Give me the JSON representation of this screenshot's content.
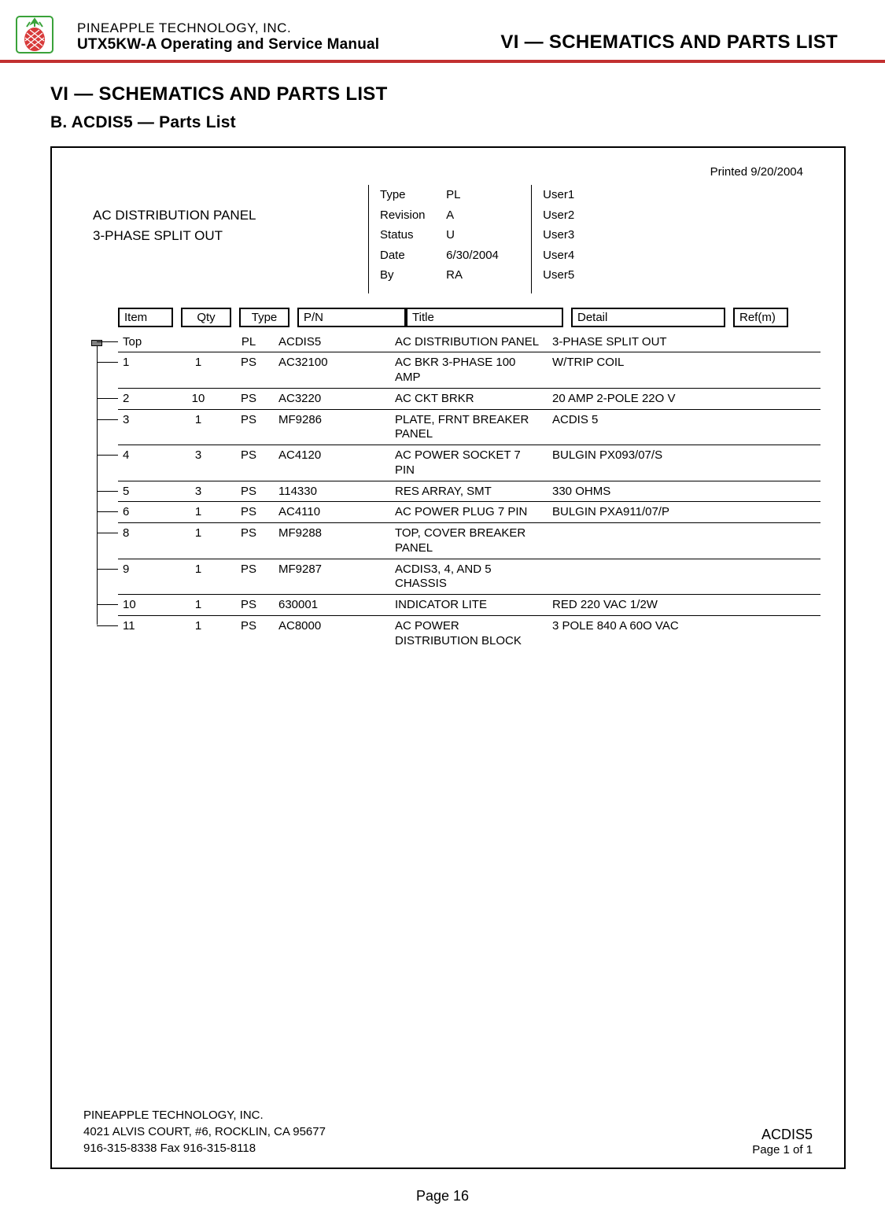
{
  "header": {
    "company": "PINEAPPLE TECHNOLOGY, INC.",
    "manual": "UTX5KW-A Operating and Service Manual",
    "right": "VI — SCHEMATICS AND PARTS LIST"
  },
  "titles": {
    "section": "VI — SCHEMATICS AND PARTS LIST",
    "subsection": "B. ACDIS5 — Parts List"
  },
  "printed": "Printed 9/20/2004",
  "meta": {
    "left": {
      "line1": "AC DISTRIBUTION PANEL",
      "line2": "3-PHASE SPLIT OUT"
    },
    "center_labels": [
      "Type",
      "Revision",
      "Status",
      "Date",
      "By"
    ],
    "center_values": [
      "PL",
      "A",
      "U",
      "6/30/2004",
      "RA"
    ],
    "right_labels": [
      "User1",
      "User2",
      "User3",
      "User4",
      "User5"
    ]
  },
  "columns": {
    "item": "Item",
    "qty": "Qty",
    "type": "Type",
    "pn": "P/N",
    "title": "Title",
    "detail": "Detail",
    "ref": "Ref(m)"
  },
  "rows": [
    {
      "item": "Top",
      "qty": "",
      "type": "PL",
      "pn": "ACDIS5",
      "title": "AC DISTRIBUTION PANEL",
      "detail": "3-PHASE SPLIT OUT",
      "ref": ""
    },
    {
      "item": "1",
      "qty": "1",
      "type": "PS",
      "pn": "AC32100",
      "title": "AC BKR 3-PHASE 100 AMP",
      "detail": "W/TRIP COIL",
      "ref": ""
    },
    {
      "item": "2",
      "qty": "10",
      "type": "PS",
      "pn": "AC3220",
      "title": "AC CKT BRKR",
      "detail": "20 AMP 2-POLE 22O V",
      "ref": ""
    },
    {
      "item": "3",
      "qty": "1",
      "type": "PS",
      "pn": "MF9286",
      "title": "PLATE, FRNT BREAKER PANEL",
      "detail": "ACDIS 5",
      "ref": ""
    },
    {
      "item": "4",
      "qty": "3",
      "type": "PS",
      "pn": "AC4120",
      "title": "AC POWER SOCKET 7 PIN",
      "detail": "BULGIN PX093/07/S",
      "ref": ""
    },
    {
      "item": "5",
      "qty": "3",
      "type": "PS",
      "pn": "114330",
      "title": "RES ARRAY, SMT",
      "detail": "330 OHMS",
      "ref": ""
    },
    {
      "item": "6",
      "qty": "1",
      "type": "PS",
      "pn": "AC4110",
      "title": "AC POWER PLUG 7 PIN",
      "detail": "BULGIN  PXA911/07/P",
      "ref": ""
    },
    {
      "item": "8",
      "qty": "1",
      "type": "PS",
      "pn": "MF9288",
      "title": "TOP, COVER BREAKER PANEL",
      "detail": "",
      "ref": ""
    },
    {
      "item": "9",
      "qty": "1",
      "type": "PS",
      "pn": "MF9287",
      "title": "ACDIS3, 4, AND 5 CHASSIS",
      "detail": "",
      "ref": ""
    },
    {
      "item": "10",
      "qty": "1",
      "type": "PS",
      "pn": "630001",
      "title": "INDICATOR LITE",
      "detail": "RED 220 VAC 1/2W",
      "ref": ""
    },
    {
      "item": "11",
      "qty": "1",
      "type": "PS",
      "pn": "AC8000",
      "title": "AC POWER DISTRIBUTION BLOCK",
      "detail": "3 POLE 840 A 60O VAC",
      "ref": ""
    }
  ],
  "footer": {
    "company": "PINEAPPLE TECHNOLOGY, INC.",
    "address": "4021 ALVIS COURT, #6, ROCKLIN, CA 95677",
    "phone": "916-315-8338   Fax 916-315-8118",
    "code": "ACDIS5",
    "page": "Page 1 of   1"
  },
  "page_number": "Page 16",
  "colors": {
    "accent": "#c23030",
    "logo_red": "#d83a3a",
    "logo_green": "#3aa23a"
  }
}
